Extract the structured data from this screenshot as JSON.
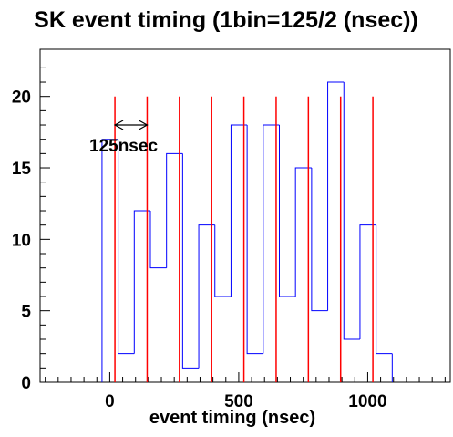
{
  "chart_data": {
    "type": "histogram",
    "title": "SK event timing (1bin=125/2 (nsec))",
    "xlabel": "event timing (nsec)",
    "ylabel": "",
    "xlim": [
      -270,
      1320
    ],
    "ylim": [
      0,
      23.3
    ],
    "xticks": [
      0,
      500,
      1000
    ],
    "yticks": [
      0,
      5,
      10,
      15,
      20
    ],
    "bin_edges": [
      -30,
      32.5,
      95,
      157.5,
      220,
      282.5,
      345,
      407.5,
      470,
      532.5,
      595,
      657.5,
      720,
      782.5,
      845,
      907.5,
      970,
      1032.5,
      1095
    ],
    "counts": [
      17,
      2,
      12,
      8,
      16,
      1,
      11,
      6,
      18,
      2,
      18,
      6,
      15,
      5,
      21,
      3,
      11,
      2
    ],
    "histogram_color": "#0000ff",
    "marker_lines": {
      "color": "#ff0000",
      "x": [
        20,
        145,
        270,
        395,
        520,
        645,
        770,
        895,
        1020
      ],
      "height": 20
    },
    "annotation": {
      "text": "125nsec",
      "arrow_from": 20,
      "arrow_to": 145,
      "arrow_y": 18
    }
  }
}
